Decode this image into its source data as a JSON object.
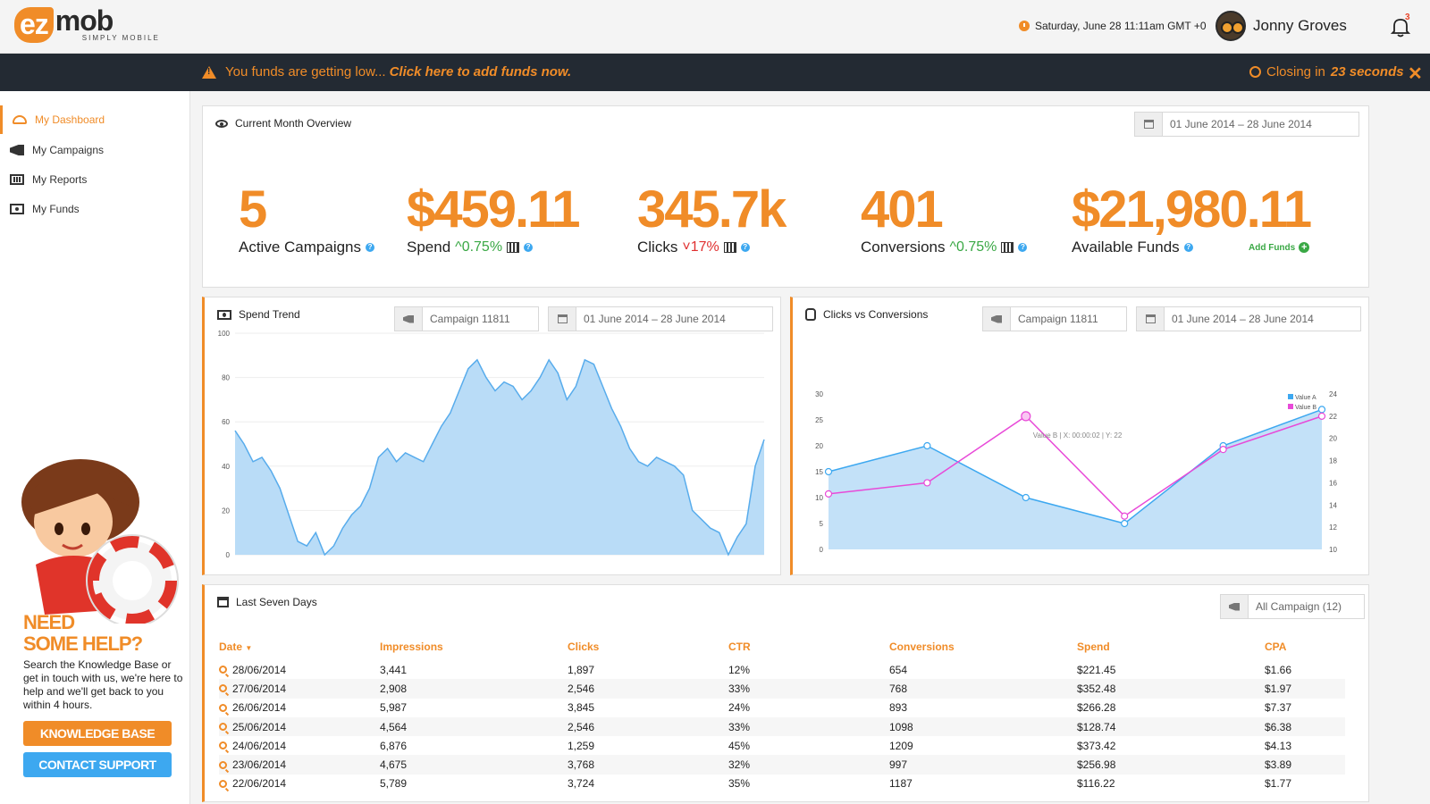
{
  "brand": {
    "ez": "ez",
    "mob": "mob",
    "tagline": "SIMPLY MOBILE"
  },
  "header": {
    "datetime": "Saturday, June 28 11:11am GMT +0",
    "username": "Jonny Groves",
    "notifications": "3"
  },
  "alert": {
    "message": "You funds are getting low...",
    "cta": "Click here to add funds now.",
    "closing_prefix": "Closing in",
    "closing_time": "23 seconds",
    "close": "✕"
  },
  "sidebar": {
    "items": [
      {
        "label": "My Dashboard",
        "icon": "dashboard-icon"
      },
      {
        "label": "My Campaigns",
        "icon": "megaphone-icon"
      },
      {
        "label": "My Reports",
        "icon": "bar-chart-icon"
      },
      {
        "label": "My Funds",
        "icon": "money-icon"
      }
    ]
  },
  "help": {
    "title_line1": "NEED",
    "title_line2": "SOME HELP?",
    "text": "Search the Knowledge Base or get in touch with us, we're here to help and we'll get back to you within 4 hours.",
    "kb_button": "KNOWLEDGE BASE",
    "support_button": "CONTACT SUPPORT"
  },
  "overview": {
    "title": "Current Month Overview",
    "date_range": "01 June 2014 – 28 June 2014",
    "stats": [
      {
        "value": "5",
        "label": "Active Campaigns"
      },
      {
        "value": "$459.11",
        "label": "Spend",
        "change": "0.75%",
        "direction": "up"
      },
      {
        "value": "345.7k",
        "label": "Clicks",
        "change": "17%",
        "direction": "down"
      },
      {
        "value": "401",
        "label": "Conversions",
        "change": "0.75%",
        "direction": "up"
      },
      {
        "value": "$21,980.11",
        "label": "Available Funds"
      }
    ],
    "add_funds": "Add Funds"
  },
  "spend_trend": {
    "title": "Spend Trend",
    "campaign": "Campaign 11811",
    "date_range": "01 June 2014 – 28 June 2014"
  },
  "clicks_conv": {
    "title": "Clicks vs Conversions",
    "campaign": "Campaign 11811",
    "date_range": "01 June 2014 – 28 June 2014",
    "tooltip": "Value B | X: 00:00:02 | Y: 22"
  },
  "chart_data": [
    {
      "type": "area",
      "ylim": [
        0,
        100
      ],
      "yticks": [
        "0",
        "20",
        "40",
        "60",
        "80",
        "100"
      ],
      "series": [
        {
          "values": [
            56,
            50,
            42,
            44,
            38,
            30,
            18,
            6,
            4,
            10,
            0,
            4,
            12,
            18,
            22,
            30,
            44,
            48,
            42,
            46,
            44,
            42,
            50,
            58,
            64,
            74,
            84,
            88,
            80,
            74,
            78,
            76,
            70,
            74,
            80,
            88,
            82,
            70,
            76,
            88,
            86,
            76,
            66,
            58,
            48,
            42,
            40,
            44,
            42,
            40,
            36,
            20,
            16,
            12,
            10,
            0,
            8,
            14,
            40,
            52
          ]
        }
      ],
      "colors": {
        "fill": "#b9dcf7",
        "line": "#58acec"
      }
    },
    {
      "type": "line",
      "ylim": [
        0,
        30
      ],
      "yticks": [
        "0",
        "5",
        "10",
        "15",
        "20",
        "25",
        "30"
      ],
      "y2lim": [
        10,
        24
      ],
      "y2ticks": [
        "10",
        "12",
        "14",
        "16",
        "18",
        "20",
        "22",
        "24"
      ],
      "x": [
        0,
        1,
        2,
        3,
        4,
        5
      ],
      "series": [
        {
          "name": "Value A",
          "values": [
            15,
            20,
            10,
            5,
            20,
            27
          ]
        },
        {
          "name": "Value B",
          "axis": "right",
          "values": [
            15,
            16,
            22,
            13,
            19,
            22
          ]
        }
      ],
      "colors": {
        "Value A": "#3da8f0",
        "Value B": "#e84ad8",
        "area": "#b9dcf7"
      }
    }
  ],
  "last_seven": {
    "title": "Last Seven Days",
    "filter": "All Campaign (12)",
    "columns": [
      "Date",
      "Impressions",
      "Clicks",
      "CTR",
      "Conversions",
      "Spend",
      "CPA"
    ],
    "rows": [
      [
        "28/06/2014",
        "3,441",
        "1,897",
        "12%",
        "654",
        "$221.45",
        "$1.66"
      ],
      [
        "27/06/2014",
        "2,908",
        "2,546",
        "33%",
        "768",
        "$352.48",
        "$1.97"
      ],
      [
        "26/06/2014",
        "5,987",
        "3,845",
        "24%",
        "893",
        "$266.28",
        "$7.37"
      ],
      [
        "25/06/2014",
        "4,564",
        "2,546",
        "33%",
        "1098",
        "$128.74",
        "$6.38"
      ],
      [
        "24/06/2014",
        "6,876",
        "1,259",
        "45%",
        "1209",
        "$373.42",
        "$4.13"
      ],
      [
        "23/06/2014",
        "4,675",
        "3,768",
        "32%",
        "997",
        "$256.98",
        "$3.89"
      ],
      [
        "22/06/2014",
        "5,789",
        "3,724",
        "35%",
        "1187",
        "$116.22",
        "$1.77"
      ]
    ]
  },
  "colors": {
    "accent": "#f08c28",
    "blue": "#3da8f0",
    "dark": "#232a33",
    "green": "#3aa845"
  }
}
